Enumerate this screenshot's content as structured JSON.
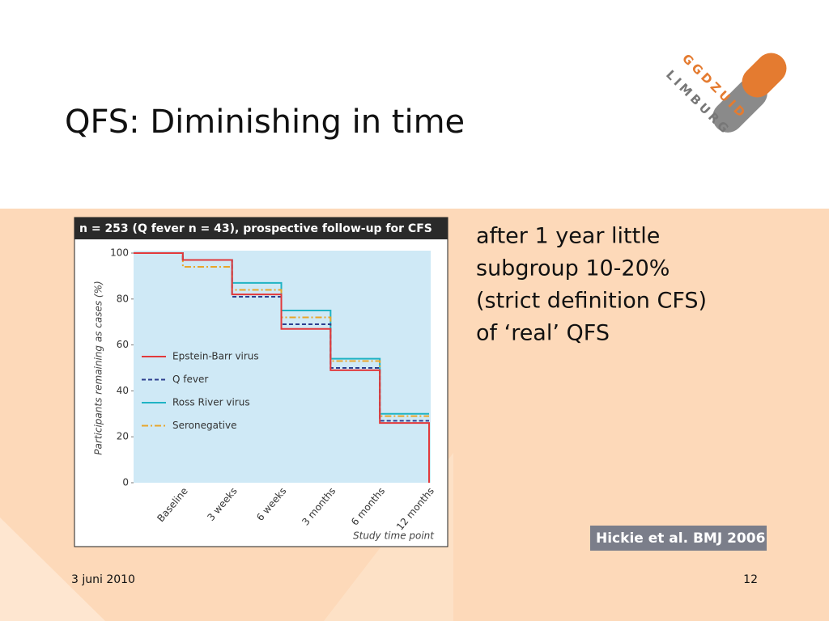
{
  "title": "QFS: Diminishing in time",
  "logo": [
    "GGDZUID",
    "LIMBURG"
  ],
  "bullet": [
    "after 1 year little",
    "subgroup 10-20%",
    "(strict definition CFS)",
    "of ‘real’ QFS"
  ],
  "citation": "Hickie et al. BMJ 2006",
  "footer": {
    "date": "3 juni 2010",
    "page": "12"
  },
  "chart_data": {
    "type": "step",
    "title": "n = 253 (Q fever n = 43), prospective follow-up for CFS",
    "ylabel": "Participants remaining as cases (%)",
    "xlabel": "Study time point",
    "categories": [
      null,
      "Baseline",
      "3 weeks",
      "6 weeks",
      "3 months",
      "6 months",
      "12 months"
    ],
    "series": [
      {
        "name": "Epstein-Barr virus",
        "color": "#e2393b",
        "dash": "solid",
        "values": [
          100,
          97,
          82,
          67,
          49,
          26,
          0
        ]
      },
      {
        "name": "Q fever",
        "color": "#2d3f8f",
        "dash": "dashed",
        "values": [
          100,
          97,
          81,
          69,
          50,
          27,
          27
        ]
      },
      {
        "name": "Ross River virus",
        "color": "#20b3c4",
        "dash": "solid",
        "values": [
          100,
          97,
          87,
          75,
          54,
          30,
          30
        ]
      },
      {
        "name": "Seronegative",
        "color": "#e8a52a",
        "dash": "dash-dot",
        "values": [
          100,
          94,
          84,
          72,
          53,
          29,
          29
        ]
      }
    ],
    "ylim": [
      0,
      100
    ],
    "yticks": [
      0,
      20,
      40,
      60,
      80,
      100
    ],
    "grid": false,
    "legend": "left",
    "plot_color": "#cfe9f6"
  }
}
